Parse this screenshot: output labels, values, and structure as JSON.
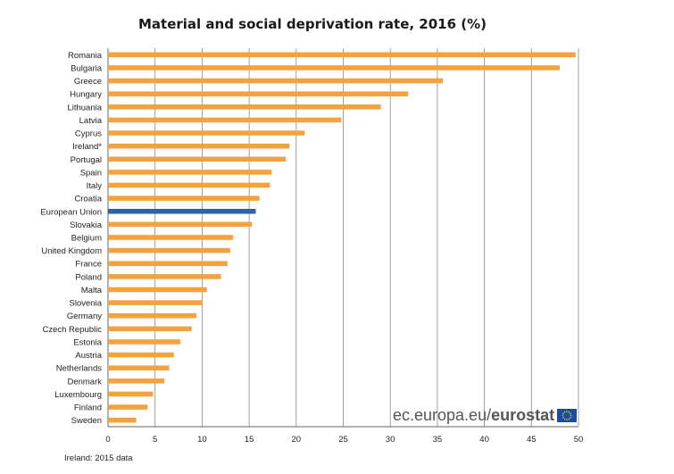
{
  "chart_data": {
    "type": "bar",
    "orientation": "horizontal",
    "title": "Material and social deprivation rate, 2016 (%)",
    "xlabel": "",
    "ylabel": "",
    "xlim": [
      0,
      50
    ],
    "x_ticks": [
      "0",
      "5",
      "10",
      "15",
      "20",
      "25",
      "30",
      "35",
      "40",
      "45",
      "50"
    ],
    "grid": "vertical",
    "categories": [
      "Romania",
      "Bulgaria",
      "Greece",
      "Hungary",
      "Lithuania",
      "Latvia",
      "Cyprus",
      "Ireland*",
      "Portugal",
      "Spain",
      "Italy",
      "Croatia",
      "European Union",
      "Slovakia",
      "Belgium",
      "United Kingdom",
      "France",
      "Poland",
      "Malta",
      "Slovenia",
      "Germany",
      "Czech Republic",
      "Estonia",
      "Austria",
      "Netherlands",
      "Denmark",
      "Luxembourg",
      "Finland",
      "Sweden"
    ],
    "values": [
      49.7,
      48.0,
      35.6,
      31.9,
      29.0,
      24.8,
      20.9,
      19.3,
      18.9,
      17.4,
      17.2,
      16.1,
      15.7,
      15.3,
      13.3,
      13.0,
      12.7,
      12.0,
      10.5,
      10.0,
      9.4,
      8.9,
      7.7,
      7.0,
      6.5,
      6.0,
      4.8,
      4.2,
      3.0
    ],
    "highlight_category": "European Union",
    "bar_color": "#f4a23e",
    "highlight_color": "#2e62a6",
    "grid_color": "#888888"
  },
  "chart": {
    "title": "Material and social deprivation rate, 2016 (%)"
  },
  "footnote": "Ireland: 2015 data",
  "branding": {
    "url": "ec.europa.eu/",
    "name": "eurostat",
    "logo_icon": "eu-flag-icon"
  }
}
